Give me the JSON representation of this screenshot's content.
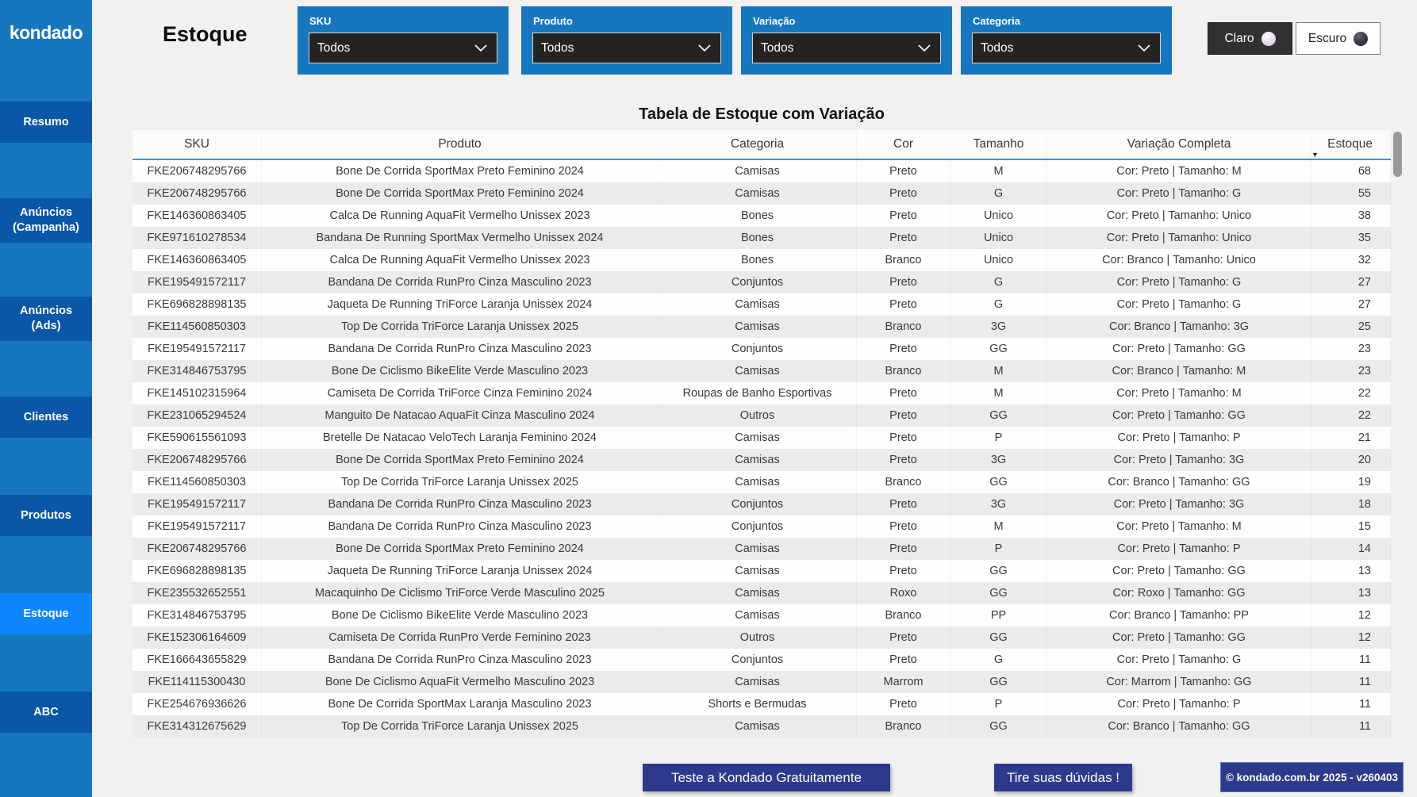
{
  "app": {
    "logo": "kondado",
    "page_title": "Estoque"
  },
  "sidebar": {
    "items": [
      {
        "label": "Resumo",
        "label2": "",
        "active": false
      },
      {
        "label": "Anúncios",
        "label2": "(Campanha)",
        "active": false
      },
      {
        "label": "Anúncios",
        "label2": "(Ads)",
        "active": false
      },
      {
        "label": "Clientes",
        "label2": "",
        "active": false
      },
      {
        "label": "Produtos",
        "label2": "",
        "active": false
      },
      {
        "label": "Estoque",
        "label2": "",
        "active": true
      },
      {
        "label": "ABC",
        "label2": "",
        "active": false
      }
    ]
  },
  "filters": {
    "items": [
      {
        "label": "SKU",
        "value": "Todos"
      },
      {
        "label": "Produto",
        "value": "Todos"
      },
      {
        "label": "Variação",
        "value": "Todos"
      },
      {
        "label": "Categoria",
        "value": "Todos"
      }
    ]
  },
  "theme_toggle": {
    "light_label": "Claro",
    "dark_label": "Escuro"
  },
  "table": {
    "title": "Tabela de Estoque com Variação",
    "columns": [
      {
        "key": "sku",
        "label": "SKU"
      },
      {
        "key": "produto",
        "label": "Produto"
      },
      {
        "key": "categoria",
        "label": "Categoria"
      },
      {
        "key": "cor",
        "label": "Cor"
      },
      {
        "key": "tamanho",
        "label": "Tamanho"
      },
      {
        "key": "variacao",
        "label": "Variação Completa"
      },
      {
        "key": "estoque",
        "label": "Estoque",
        "sorted": "desc"
      }
    ],
    "rows": [
      {
        "sku": "FKE206748295766",
        "produto": "Bone De Corrida SportMax Preto Feminino 2024",
        "categoria": "Camisas",
        "cor": "Preto",
        "tamanho": "M",
        "variacao": "Cor: Preto | Tamanho: M",
        "estoque": 68
      },
      {
        "sku": "FKE206748295766",
        "produto": "Bone De Corrida SportMax Preto Feminino 2024",
        "categoria": "Camisas",
        "cor": "Preto",
        "tamanho": "G",
        "variacao": "Cor: Preto | Tamanho: G",
        "estoque": 55
      },
      {
        "sku": "FKE146360863405",
        "produto": "Calca De Running AquaFit Vermelho Unissex 2023",
        "categoria": "Bones",
        "cor": "Preto",
        "tamanho": "Unico",
        "variacao": "Cor: Preto | Tamanho: Unico",
        "estoque": 38
      },
      {
        "sku": "FKE971610278534",
        "produto": "Bandana De Running SportMax Vermelho Unissex 2024",
        "categoria": "Bones",
        "cor": "Preto",
        "tamanho": "Unico",
        "variacao": "Cor: Preto | Tamanho: Unico",
        "estoque": 35
      },
      {
        "sku": "FKE146360863405",
        "produto": "Calca De Running AquaFit Vermelho Unissex 2023",
        "categoria": "Bones",
        "cor": "Branco",
        "tamanho": "Unico",
        "variacao": "Cor: Branco | Tamanho: Unico",
        "estoque": 32
      },
      {
        "sku": "FKE195491572117",
        "produto": "Bandana De Corrida RunPro Cinza Masculino 2023",
        "categoria": "Conjuntos",
        "cor": "Preto",
        "tamanho": "G",
        "variacao": "Cor: Preto | Tamanho: G",
        "estoque": 27
      },
      {
        "sku": "FKE696828898135",
        "produto": "Jaqueta De Running TriForce Laranja Unissex 2024",
        "categoria": "Camisas",
        "cor": "Preto",
        "tamanho": "G",
        "variacao": "Cor: Preto | Tamanho: G",
        "estoque": 27
      },
      {
        "sku": "FKE114560850303",
        "produto": "Top De Corrida TriForce Laranja Unissex 2025",
        "categoria": "Camisas",
        "cor": "Branco",
        "tamanho": "3G",
        "variacao": "Cor: Branco | Tamanho: 3G",
        "estoque": 25
      },
      {
        "sku": "FKE195491572117",
        "produto": "Bandana De Corrida RunPro Cinza Masculino 2023",
        "categoria": "Conjuntos",
        "cor": "Preto",
        "tamanho": "GG",
        "variacao": "Cor: Preto | Tamanho: GG",
        "estoque": 23
      },
      {
        "sku": "FKE314846753795",
        "produto": "Bone De Ciclismo BikeElite Verde Masculino 2023",
        "categoria": "Camisas",
        "cor": "Branco",
        "tamanho": "M",
        "variacao": "Cor: Branco | Tamanho: M",
        "estoque": 23
      },
      {
        "sku": "FKE145102315964",
        "produto": "Camiseta De Corrida TriForce Cinza Feminino 2024",
        "categoria": "Roupas de Banho Esportivas",
        "cor": "Preto",
        "tamanho": "M",
        "variacao": "Cor: Preto | Tamanho: M",
        "estoque": 22
      },
      {
        "sku": "FKE231065294524",
        "produto": "Manguito De Natacao AquaFit Cinza Masculino 2024",
        "categoria": "Outros",
        "cor": "Preto",
        "tamanho": "GG",
        "variacao": "Cor: Preto | Tamanho: GG",
        "estoque": 22
      },
      {
        "sku": "FKE590615561093",
        "produto": "Bretelle De Natacao VeloTech Laranja Feminino 2024",
        "categoria": "Camisas",
        "cor": "Preto",
        "tamanho": "P",
        "variacao": "Cor: Preto | Tamanho: P",
        "estoque": 21
      },
      {
        "sku": "FKE206748295766",
        "produto": "Bone De Corrida SportMax Preto Feminino 2024",
        "categoria": "Camisas",
        "cor": "Preto",
        "tamanho": "3G",
        "variacao": "Cor: Preto | Tamanho: 3G",
        "estoque": 20
      },
      {
        "sku": "FKE114560850303",
        "produto": "Top De Corrida TriForce Laranja Unissex 2025",
        "categoria": "Camisas",
        "cor": "Branco",
        "tamanho": "GG",
        "variacao": "Cor: Branco | Tamanho: GG",
        "estoque": 19
      },
      {
        "sku": "FKE195491572117",
        "produto": "Bandana De Corrida RunPro Cinza Masculino 2023",
        "categoria": "Conjuntos",
        "cor": "Preto",
        "tamanho": "3G",
        "variacao": "Cor: Preto | Tamanho: 3G",
        "estoque": 18
      },
      {
        "sku": "FKE195491572117",
        "produto": "Bandana De Corrida RunPro Cinza Masculino 2023",
        "categoria": "Conjuntos",
        "cor": "Preto",
        "tamanho": "M",
        "variacao": "Cor: Preto | Tamanho: M",
        "estoque": 15
      },
      {
        "sku": "FKE206748295766",
        "produto": "Bone De Corrida SportMax Preto Feminino 2024",
        "categoria": "Camisas",
        "cor": "Preto",
        "tamanho": "P",
        "variacao": "Cor: Preto | Tamanho: P",
        "estoque": 14
      },
      {
        "sku": "FKE696828898135",
        "produto": "Jaqueta De Running TriForce Laranja Unissex 2024",
        "categoria": "Camisas",
        "cor": "Preto",
        "tamanho": "GG",
        "variacao": "Cor: Preto | Tamanho: GG",
        "estoque": 13
      },
      {
        "sku": "FKE235532652551",
        "produto": "Macaquinho De Ciclismo TriForce Verde Masculino 2025",
        "categoria": "Camisas",
        "cor": "Roxo",
        "tamanho": "GG",
        "variacao": "Cor: Roxo | Tamanho: GG",
        "estoque": 13
      },
      {
        "sku": "FKE314846753795",
        "produto": "Bone De Ciclismo BikeElite Verde Masculino 2023",
        "categoria": "Camisas",
        "cor": "Branco",
        "tamanho": "PP",
        "variacao": "Cor: Branco | Tamanho: PP",
        "estoque": 12
      },
      {
        "sku": "FKE152306164609",
        "produto": "Camiseta De Corrida RunPro Verde Feminino 2023",
        "categoria": "Outros",
        "cor": "Preto",
        "tamanho": "GG",
        "variacao": "Cor: Preto | Tamanho: GG",
        "estoque": 12
      },
      {
        "sku": "FKE166643655829",
        "produto": "Bandana De Corrida RunPro Cinza Masculino 2023",
        "categoria": "Conjuntos",
        "cor": "Preto",
        "tamanho": "G",
        "variacao": "Cor: Preto | Tamanho: G",
        "estoque": 11
      },
      {
        "sku": "FKE114115300430",
        "produto": "Bone De Ciclismo AquaFit Vermelho Masculino 2023",
        "categoria": "Camisas",
        "cor": "Marrom",
        "tamanho": "GG",
        "variacao": "Cor: Marrom | Tamanho: GG",
        "estoque": 11
      },
      {
        "sku": "FKE254676936626",
        "produto": "Bone De Corrida SportMax Laranja Masculino 2023",
        "categoria": "Shorts e Bermudas",
        "cor": "Preto",
        "tamanho": "P",
        "variacao": "Cor: Preto | Tamanho: P",
        "estoque": 11
      },
      {
        "sku": "FKE314312675629",
        "produto": "Top De Corrida TriForce Laranja Unissex 2025",
        "categoria": "Camisas",
        "cor": "Branco",
        "tamanho": "GG",
        "variacao": "Cor: Branco | Tamanho: GG",
        "estoque": 11
      }
    ]
  },
  "footer": {
    "cta_trial": "Teste a Kondado Gratuitamente",
    "cta_questions": "Tire suas dúvidas !",
    "copyright": "© kondado.com.br 2025 - v260403"
  },
  "colors": {
    "sidebar_bg": "#1777be",
    "nav_item_bg": "#0a57a8",
    "nav_item_active_bg": "#0d86ff",
    "filter_box_bg": "#1777be",
    "dropdown_bg": "#252423",
    "header_underline": "#2e96ff",
    "row_alt_bg": "#ebebeb",
    "footer_button_bg": "#2d3a8c",
    "theme_light_btn_bg": "#323031",
    "theme_dark_btn_bg": "#ffffff"
  }
}
